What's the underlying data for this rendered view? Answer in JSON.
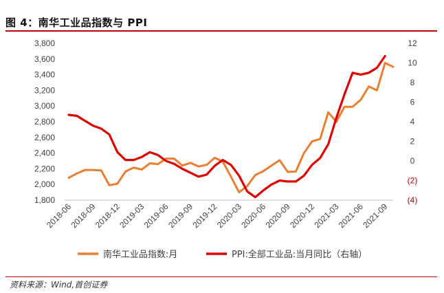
{
  "title": "图 4：南华工业品指数与 PPI",
  "source": "资料来源：Wind,首创证券",
  "chart_data": {
    "type": "line",
    "x": [
      "2018-06",
      "2018-07",
      "2018-08",
      "2018-09",
      "2018-10",
      "2018-11",
      "2018-12",
      "2019-01",
      "2019-02",
      "2019-03",
      "2019-04",
      "2019-05",
      "2019-06",
      "2019-07",
      "2019-08",
      "2019-09",
      "2019-10",
      "2019-11",
      "2019-12",
      "2019-01b",
      "2020-02",
      "2020-03",
      "2020-04",
      "2020-05",
      "2020-06",
      "2020-07",
      "2020-08",
      "2020-09",
      "2020-10",
      "2020-11",
      "2020-12",
      "2021-01",
      "2021-02",
      "2021-03",
      "2021-04",
      "2021-05",
      "2021-06",
      "2021-07",
      "2021-08",
      "2021-09",
      "2021-10"
    ],
    "x_labels": [
      "2018-06",
      "2018-09",
      "2018-12",
      "2019-03",
      "2019-06",
      "2019-09",
      "2019-12",
      "2020-03",
      "2020-06",
      "2020-09",
      "2020-12",
      "2021-03",
      "2021-06",
      "2021-09"
    ],
    "y_left": {
      "ticks": [
        "1,800",
        "2,000",
        "2,200",
        "2,400",
        "2,600",
        "2,800",
        "3,000",
        "3,200",
        "3,400",
        "3,600",
        "3,800"
      ],
      "lim": [
        1800,
        3800
      ]
    },
    "y_right": {
      "ticks": [
        "(4)",
        "(2)",
        "0",
        "2",
        "4",
        "6",
        "8",
        "10",
        "12"
      ],
      "lim": [
        -4,
        12
      ],
      "negative_color": "#c00000"
    },
    "series": [
      {
        "name": "南华工业品指数:月",
        "axis": "left",
        "color": "#ed7d31",
        "values": [
          2085,
          2140,
          2185,
          2185,
          2180,
          1990,
          2010,
          2165,
          2215,
          2190,
          2270,
          2260,
          2330,
          2330,
          2240,
          2275,
          2230,
          2250,
          2340,
          2290,
          2100,
          1900,
          1980,
          2120,
          2170,
          2240,
          2310,
          2160,
          2165,
          2400,
          2550,
          2580,
          2920,
          2800,
          2990,
          2990,
          3080,
          3250,
          3200,
          3550,
          3500
        ]
      },
      {
        "name": "PPI:全部工业品:当月同比（右轴）",
        "axis": "right",
        "color": "#e00000",
        "values": [
          4.7,
          4.6,
          4.1,
          3.6,
          3.3,
          2.7,
          0.9,
          0.1,
          0.1,
          0.4,
          0.9,
          0.6,
          0.0,
          -0.3,
          -0.8,
          -1.2,
          -1.6,
          -1.4,
          -0.5,
          0.1,
          -0.4,
          -1.5,
          -3.1,
          -3.7,
          -3.0,
          -2.4,
          -2.0,
          -2.1,
          -2.1,
          -1.5,
          -0.4,
          0.3,
          1.7,
          4.4,
          6.8,
          9.0,
          8.8,
          9.0,
          9.5,
          10.7,
          null
        ]
      }
    ],
    "legend_position": "bottom",
    "grid": false
  }
}
